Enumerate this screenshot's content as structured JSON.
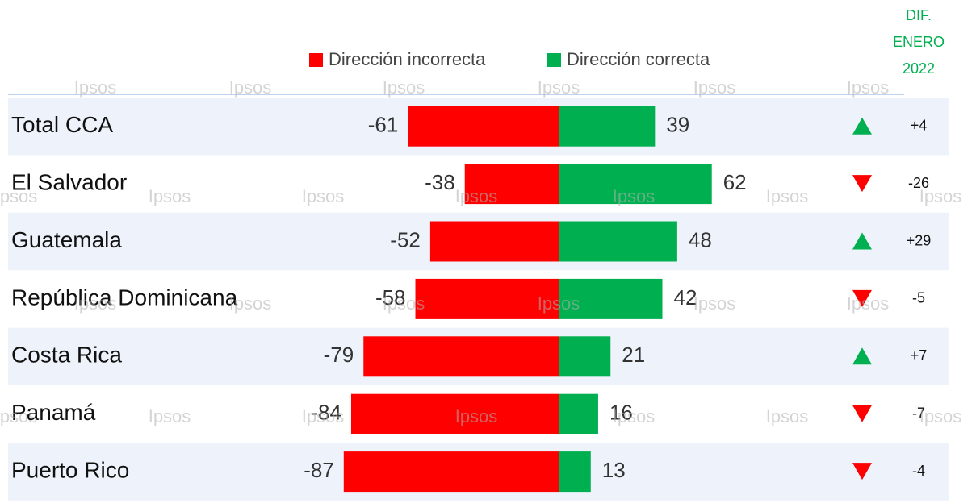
{
  "chart_data": {
    "type": "diverging-bar",
    "categories": [
      "Total CCA",
      "El Salvador",
      "Guatemala",
      "República Dominicana",
      "Costa Rica",
      "Panamá",
      "Puerto Rico"
    ],
    "series": [
      {
        "name": "Dirección incorrecta",
        "color": "#ff0000",
        "values": [
          -61,
          -38,
          -52,
          -58,
          -79,
          -84,
          -87
        ]
      },
      {
        "name": "Dirección correcta",
        "color": "#00b050",
        "values": [
          39,
          62,
          48,
          42,
          21,
          16,
          13
        ]
      }
    ],
    "change_title": [
      "DIF.",
      "ENERO",
      "2022"
    ],
    "changes": [
      4,
      -26,
      29,
      -5,
      7,
      -7,
      -4
    ],
    "change_labels": [
      "+4",
      "-26",
      "+29",
      "-5",
      "+7",
      "-7",
      "-4"
    ],
    "watermark": "Ipsos"
  }
}
